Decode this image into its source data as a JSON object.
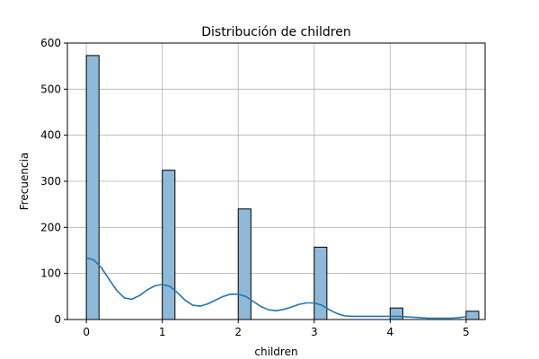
{
  "chart_data": {
    "type": "bar",
    "title": "Distribución de children",
    "xlabel": "children",
    "ylabel": "Frecuencia",
    "xlim": [
      -0.25,
      5.25
    ],
    "ylim": [
      0,
      600
    ],
    "x_ticks": [
      0,
      1,
      2,
      3,
      4,
      5
    ],
    "y_ticks": [
      0,
      100,
      200,
      300,
      400,
      500,
      600
    ],
    "grid": true,
    "bin_width": 0.1667,
    "bars": [
      {
        "x": 0,
        "value": 573
      },
      {
        "x": 1,
        "value": 324
      },
      {
        "x": 2,
        "value": 240
      },
      {
        "x": 3,
        "value": 157
      },
      {
        "x": 4,
        "value": 25
      },
      {
        "x": 5,
        "value": 18
      }
    ],
    "kde": {
      "x": [
        0,
        0.1,
        0.2,
        0.3,
        0.4,
        0.5,
        0.6,
        0.7,
        0.8,
        0.9,
        1.0,
        1.1,
        1.2,
        1.3,
        1.4,
        1.5,
        1.6,
        1.7,
        1.8,
        1.9,
        2.0,
        2.1,
        2.2,
        2.3,
        2.4,
        2.5,
        2.6,
        2.7,
        2.8,
        2.9,
        3.0,
        3.1,
        3.2,
        3.3,
        3.4,
        3.5,
        3.6,
        3.7,
        3.8,
        3.9,
        4.0,
        4.1,
        4.2,
        4.3,
        4.4,
        4.5,
        4.6,
        4.7,
        4.8,
        4.9,
        5.0
      ],
      "y": [
        134,
        129,
        112,
        87,
        63,
        47,
        44,
        52,
        64,
        73,
        76,
        72,
        58,
        42,
        31,
        29,
        34,
        42,
        50,
        55,
        55,
        50,
        39,
        28,
        21,
        19,
        22,
        27,
        33,
        36,
        36,
        31,
        21,
        13,
        8,
        7,
        7,
        7,
        7,
        7,
        7,
        7,
        6,
        5,
        4,
        3,
        3,
        3,
        3,
        4,
        6
      ]
    },
    "colors": {
      "bar_fill": "#8fb9d9",
      "bar_edge": "#000000",
      "kde_line": "#1f77b4"
    }
  }
}
